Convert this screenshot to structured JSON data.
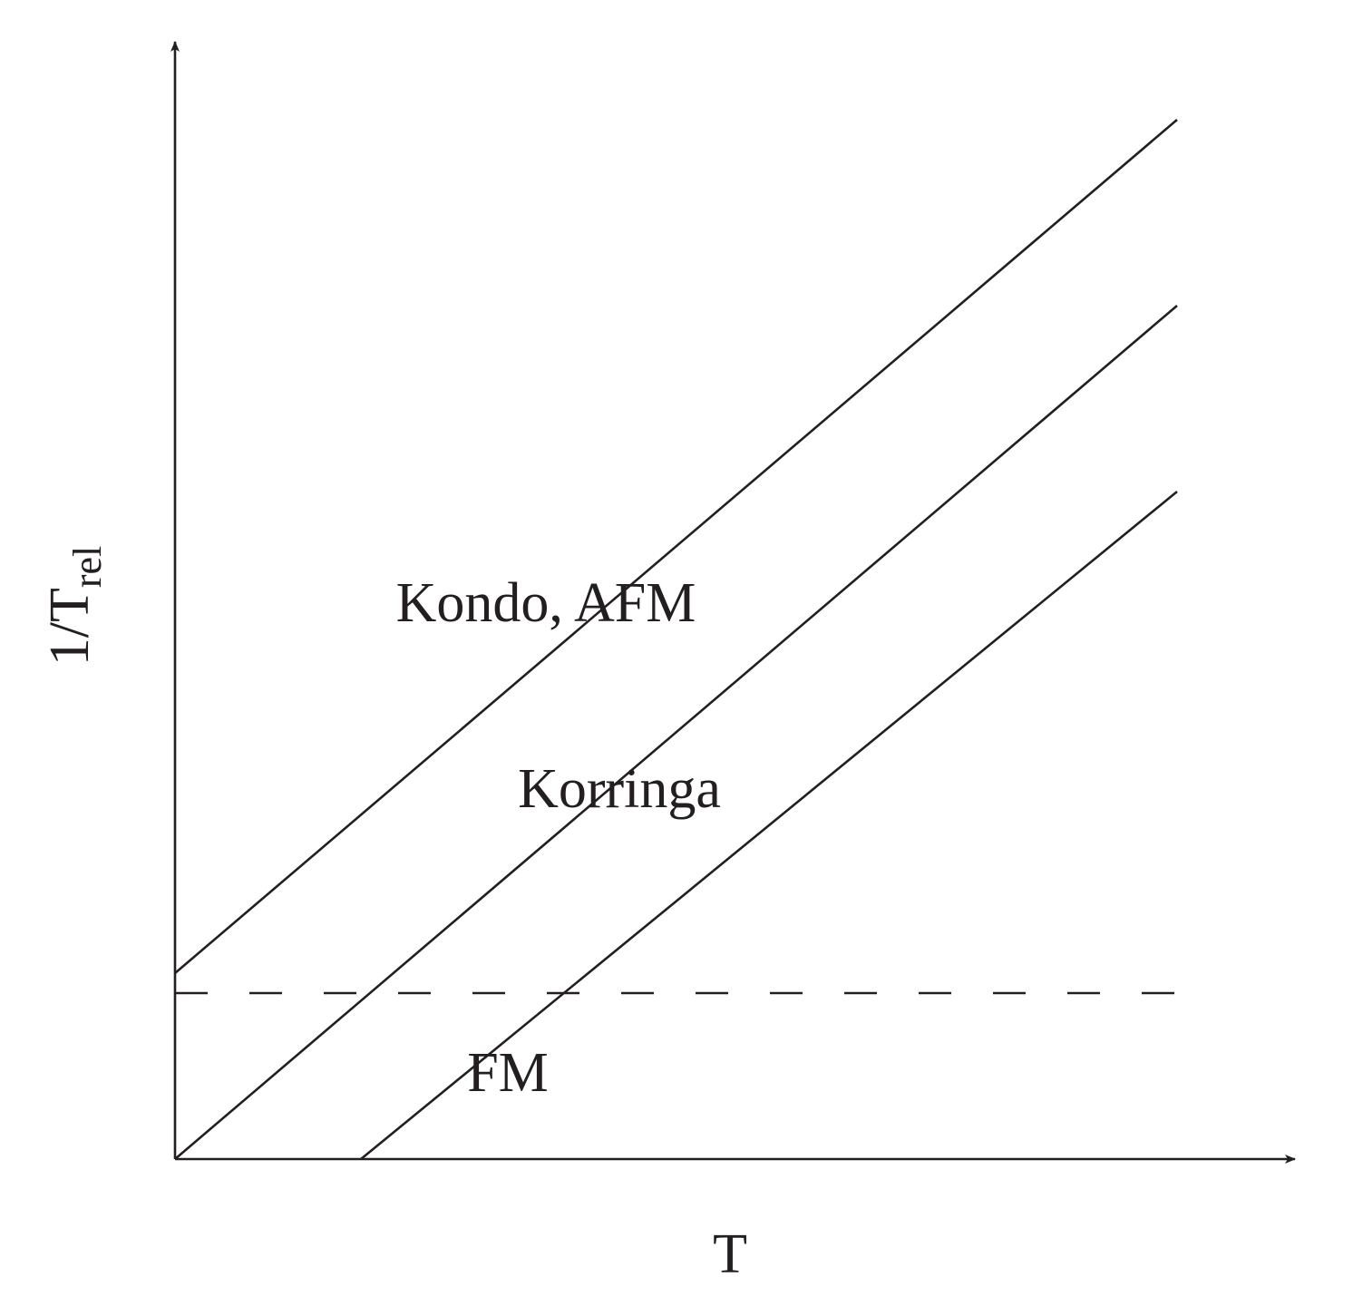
{
  "axes": {
    "x_label": "T",
    "y_label": {
      "main": "1/T",
      "subscript": "rel"
    }
  },
  "regions": [
    {
      "label": "Kondo, AFM"
    },
    {
      "label": "Korringa"
    },
    {
      "label": "FM"
    }
  ]
}
